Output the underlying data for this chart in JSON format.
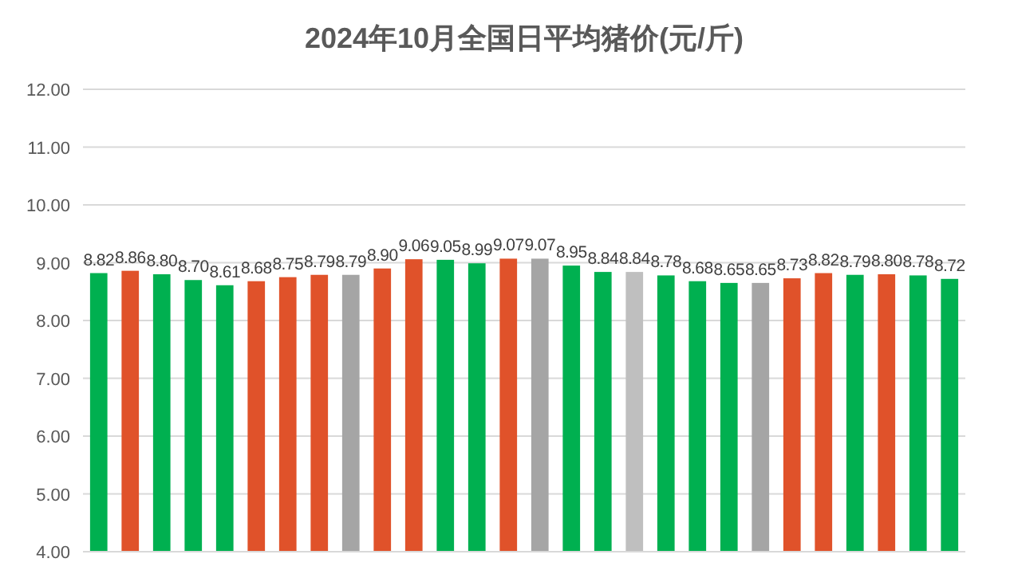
{
  "chart_data": {
    "type": "bar",
    "title": "2024年10月全国日平均猪价(元/斤)",
    "categories": [
      null,
      null,
      null,
      null,
      null,
      null,
      null,
      null,
      null,
      null,
      null,
      null,
      null,
      null,
      null,
      null,
      null,
      null,
      null,
      null,
      null,
      null,
      null,
      null,
      null,
      null,
      null,
      null
    ],
    "values": [
      8.82,
      8.86,
      8.8,
      8.7,
      8.61,
      8.68,
      8.75,
      8.79,
      8.79,
      8.9,
      9.06,
      9.05,
      8.99,
      9.07,
      9.07,
      8.95,
      8.84,
      8.84,
      8.78,
      8.68,
      8.65,
      8.65,
      8.73,
      8.82,
      8.79,
      8.8,
      8.78,
      8.72
    ],
    "value_labels": [
      "8.82",
      "8.86",
      "8.80",
      "8.70",
      "8.61",
      "8.68",
      "8.75",
      "8.79",
      "8.79",
      "8.90",
      "9.06",
      "9.05",
      "8.99",
      "9.07",
      "9.07",
      "8.95",
      "8.84",
      "8.84",
      "8.78",
      "8.68",
      "8.65",
      "8.65",
      "8.73",
      "8.82",
      "8.79",
      "8.80",
      "8.78",
      "8.72"
    ],
    "colors": [
      "#00b050",
      "#e0522a",
      "#00b050",
      "#00b050",
      "#00b050",
      "#e0522a",
      "#e0522a",
      "#e0522a",
      "#a5a5a5",
      "#e0522a",
      "#e0522a",
      "#00b050",
      "#00b050",
      "#e0522a",
      "#a5a5a5",
      "#00b050",
      "#00b050",
      "#bfbfbf",
      "#00b050",
      "#00b050",
      "#00b050",
      "#a5a5a5",
      "#e0522a",
      "#e0522a",
      "#00b050",
      "#e0522a",
      "#00b050",
      "#00b050"
    ],
    "ylim": [
      4,
      12
    ],
    "yticks": [
      {
        "value": 4,
        "label": "4.00"
      },
      {
        "value": 5,
        "label": "5.00"
      },
      {
        "value": 6,
        "label": "6.00"
      },
      {
        "value": 7,
        "label": "7.00"
      },
      {
        "value": 8,
        "label": "8.00"
      },
      {
        "value": 9,
        "label": "9.00"
      },
      {
        "value": 10,
        "label": "10.00"
      },
      {
        "value": 11,
        "label": "11.00"
      },
      {
        "value": 12,
        "label": "12.00"
      }
    ],
    "grid": true
  }
}
